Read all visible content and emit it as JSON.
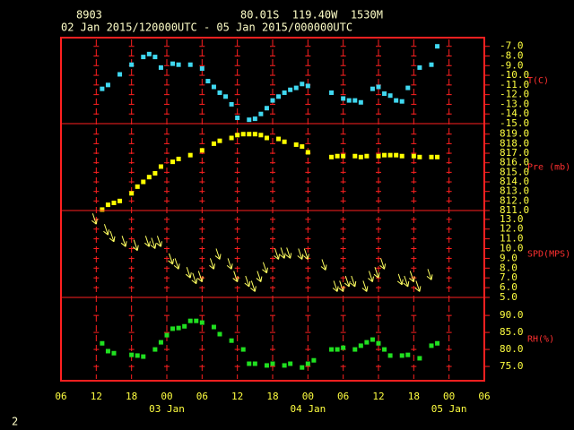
{
  "header": {
    "station": "8903",
    "location": "80.01S  119.40W  1530M",
    "period": "02 Jan 2015/120000UTC - 05 Jan 2015/000000UTC"
  },
  "page_number": "2",
  "x_axis": {
    "xlim": [
      6,
      78
    ],
    "xticks": [
      {
        "value": 6,
        "label": "06"
      },
      {
        "value": 12,
        "label": "12"
      },
      {
        "value": 18,
        "label": "18"
      },
      {
        "value": 24,
        "label": "00"
      },
      {
        "value": 30,
        "label": "06"
      },
      {
        "value": 36,
        "label": "12"
      },
      {
        "value": 42,
        "label": "18"
      },
      {
        "value": 48,
        "label": "00"
      },
      {
        "value": 54,
        "label": "06"
      },
      {
        "value": 60,
        "label": "12"
      },
      {
        "value": 66,
        "label": "18"
      },
      {
        "value": 72,
        "label": "00"
      },
      {
        "value": 78,
        "label": "06"
      }
    ],
    "date_labels": [
      {
        "value": 24,
        "label": "03 Jan"
      },
      {
        "value": 48,
        "label": "04 Jan"
      },
      {
        "value": 72,
        "label": "05 Jan"
      }
    ]
  },
  "chart_data": [
    {
      "type": "scatter",
      "ylabel": "T(C)",
      "color": "#40d8f0",
      "ylim": [
        -15,
        -6.1
      ],
      "yticks": [
        {
          "value": -7,
          "label": "-7.0"
        },
        {
          "value": -8,
          "label": "-8.0"
        },
        {
          "value": -9,
          "label": "-9.0"
        },
        {
          "value": -10,
          "label": "-10.0"
        },
        {
          "value": -11,
          "label": "-11.0"
        },
        {
          "value": -12,
          "label": "-12.0"
        },
        {
          "value": -13,
          "label": "-13.0"
        },
        {
          "value": -14,
          "label": "-14.0"
        },
        {
          "value": -15,
          "label": "-15.0"
        }
      ],
      "x": [
        13,
        14,
        16,
        18,
        20,
        21,
        22,
        23,
        25,
        26,
        28,
        30,
        31,
        32,
        33,
        34,
        35,
        36,
        38,
        39,
        40,
        41,
        42,
        43,
        44,
        45,
        46,
        47,
        48,
        52,
        54,
        55,
        56,
        57,
        59,
        60,
        61,
        62,
        63,
        64,
        65,
        67,
        69,
        70
      ],
      "values": [
        -11.4,
        -11.0,
        -9.9,
        -8.9,
        -8.1,
        -7.8,
        -8.1,
        -9.2,
        -8.8,
        -8.9,
        -8.9,
        -9.3,
        -10.6,
        -11.2,
        -11.8,
        -12.2,
        -13.0,
        -14.4,
        -14.6,
        -14.5,
        -14.0,
        -13.4,
        -12.6,
        -12.2,
        -11.8,
        -11.5,
        -11.3,
        -10.9,
        -11.1,
        -11.8,
        -12.4,
        -12.6,
        -12.6,
        -12.8,
        -11.4,
        -11.2,
        -11.9,
        -12.1,
        -12.6,
        -12.7,
        -11.3,
        -9.2,
        -8.9,
        -7.0
      ]
    },
    {
      "type": "scatter",
      "ylabel": "Pre (mb)",
      "color": "#ffff00",
      "ylim": [
        811,
        820.1
      ],
      "yticks": [
        {
          "value": 811,
          "label": "811.0"
        },
        {
          "value": 812,
          "label": "812.0"
        },
        {
          "value": 813,
          "label": "813.0"
        },
        {
          "value": 814,
          "label": "814.0"
        },
        {
          "value": 815,
          "label": "815.0"
        },
        {
          "value": 816,
          "label": "816.0"
        },
        {
          "value": 817,
          "label": "817.0"
        },
        {
          "value": 818,
          "label": "818.0"
        },
        {
          "value": 819,
          "label": "819.0"
        }
      ],
      "x": [
        13,
        14,
        15,
        16,
        18,
        19,
        20,
        21,
        22,
        23,
        25,
        26,
        28,
        30,
        32,
        33,
        35,
        36,
        37,
        38,
        39,
        40,
        41,
        43,
        44,
        46,
        47,
        48,
        52,
        53,
        54,
        56,
        57,
        58,
        60,
        61,
        62,
        63,
        64,
        66,
        67,
        69,
        70
      ],
      "values": [
        811.1,
        811.6,
        811.8,
        812.0,
        812.8,
        813.5,
        814.0,
        814.5,
        814.9,
        815.6,
        816.1,
        816.4,
        816.8,
        817.3,
        818.0,
        818.3,
        818.6,
        818.9,
        819.0,
        819.0,
        819.0,
        818.9,
        818.6,
        818.5,
        818.2,
        817.9,
        817.7,
        817.1,
        816.6,
        816.7,
        816.7,
        816.7,
        816.6,
        816.7,
        816.7,
        816.8,
        816.8,
        816.8,
        816.7,
        816.7,
        816.6,
        816.6,
        816.6
      ]
    },
    {
      "type": "arrow",
      "ylabel": "SPD(MPS)",
      "color": "#ffff60",
      "ylim": [
        5,
        13.9
      ],
      "yticks": [
        {
          "value": 5,
          "label": "5.0"
        },
        {
          "value": 6,
          "label": "6.0"
        },
        {
          "value": 7,
          "label": "7.0"
        },
        {
          "value": 8,
          "label": "8.0"
        },
        {
          "value": 9,
          "label": "9.0"
        },
        {
          "value": 10,
          "label": "10.0"
        },
        {
          "value": 11,
          "label": "11.0"
        },
        {
          "value": 12,
          "label": "12.0"
        },
        {
          "value": 13,
          "label": "13.0"
        }
      ],
      "x": [
        12,
        14,
        15,
        17,
        19,
        21,
        22,
        23,
        25,
        26,
        28,
        29,
        30,
        32,
        33,
        35,
        36,
        38,
        39,
        40,
        41,
        43,
        44,
        45,
        47,
        48,
        51,
        53,
        54,
        55,
        56,
        58,
        59,
        60,
        61,
        64,
        65,
        66,
        67,
        69
      ],
      "values": [
        12.5,
        11.4,
        10.7,
        10.2,
        9.8,
        10.2,
        10.0,
        10.2,
        8.4,
        7.9,
        7.0,
        6.4,
        6.6,
        7.9,
        8.9,
        7.9,
        6.6,
        6.1,
        5.6,
        6.6,
        7.5,
        8.9,
        9.0,
        9.0,
        8.9,
        8.9,
        7.8,
        5.6,
        5.6,
        6.1,
        6.1,
        5.6,
        6.6,
        7.0,
        7.9,
        6.3,
        6.1,
        6.6,
        5.6,
        6.8
      ]
    },
    {
      "type": "scatter",
      "ylabel": "RH(%)",
      "color": "#20e020",
      "ylim": [
        70.8,
        95.3
      ],
      "yticks": [
        {
          "value": 75,
          "label": "75.0"
        },
        {
          "value": 80,
          "label": "80.0"
        },
        {
          "value": 85,
          "label": "85.0"
        },
        {
          "value": 90,
          "label": "90.0"
        }
      ],
      "x": [
        13,
        14,
        15,
        18,
        19,
        20,
        22,
        23,
        24,
        25,
        26,
        27,
        28,
        29,
        30,
        32,
        33,
        35,
        37,
        38,
        39,
        41,
        42,
        44,
        45,
        47,
        48,
        49,
        52,
        53,
        54,
        56,
        57,
        58,
        59,
        60,
        61,
        62,
        64,
        65,
        67,
        69,
        70
      ],
      "values": [
        81.8,
        79.5,
        78.9,
        78.4,
        78.2,
        77.9,
        80.0,
        82.1,
        84.2,
        86.1,
        86.3,
        86.8,
        88.4,
        88.4,
        87.9,
        86.6,
        84.5,
        82.6,
        80.0,
        75.8,
        75.8,
        75.3,
        75.8,
        75.3,
        75.8,
        74.7,
        75.8,
        76.8,
        80.0,
        80.0,
        80.5,
        80.0,
        81.1,
        82.1,
        82.9,
        81.8,
        80.0,
        78.2,
        78.2,
        78.4,
        77.4,
        81.1,
        81.8
      ]
    }
  ]
}
